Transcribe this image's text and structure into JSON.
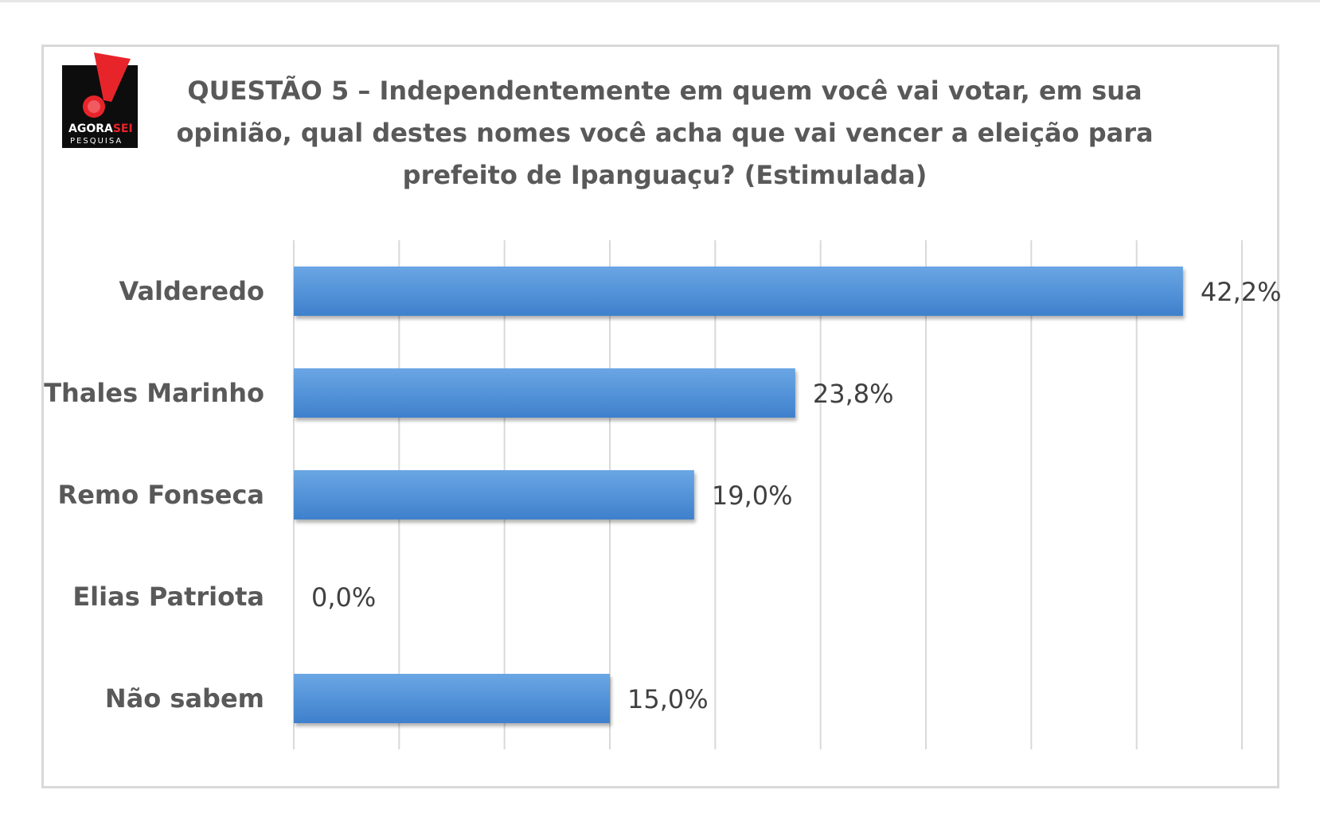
{
  "header": {
    "logo": {
      "icon": "exclamation-mark-logo",
      "brand_top": "AGORA",
      "brand_top_accent": "SEI",
      "brand_bottom": "PESQUISA",
      "colors": {
        "box": "#0d0d0d",
        "mark": "#e8242b",
        "text": "#ffffff"
      }
    },
    "title_lines": [
      "QUESTÃO 5 – Independentemente em quem você vai votar, em sua",
      "opinião, qual destes nomes você acha que vai vencer a eleição para",
      "prefeito de Ipanguaçu? (Estimulada)"
    ]
  },
  "chart_data": {
    "type": "bar",
    "orientation": "horizontal",
    "categories": [
      "Valderedo",
      "Thales Marinho",
      "Remo Fonseca",
      "Elias Patriota",
      "Não sabem"
    ],
    "values": [
      42.2,
      23.8,
      19.0,
      0.0,
      15.0
    ],
    "data_labels": [
      "42,2%",
      "23,8%",
      "19,0%",
      "0,0%",
      "15,0%"
    ],
    "title": "QUESTÃO 5 – Independentemente em quem você vai votar, em sua opinião, qual destes nomes você acha que vai vencer a eleição para prefeito de Ipanguaçu? (Estimulada)",
    "xlabel": "",
    "ylabel": "",
    "xlim": [
      0,
      45
    ],
    "x_gridline_step": 5,
    "grid": true,
    "legend": "none",
    "colors": {
      "bar": "#4a8fd8",
      "bar_light": "#6aa6e4",
      "gridline": "#d9d9d9"
    }
  }
}
